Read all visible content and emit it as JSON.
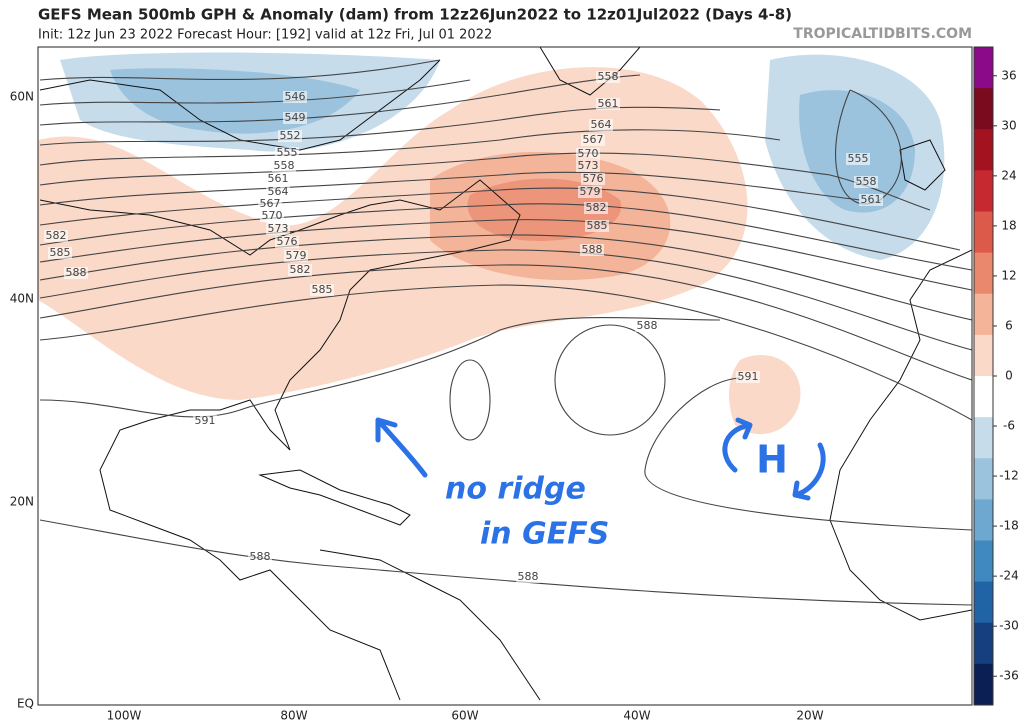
{
  "header": {
    "title": "GEFS Mean 500mb GPH & Anomaly (dam) from 12z26Jun2022 to 12z01Jul2022 (Days 4-8)",
    "subtitle": "Init: 12z Jun 23 2022   Forecast Hour: [192]   valid at 12z Fri, Jul 01 2022",
    "watermark": "TROPICALTIDBITS.COM"
  },
  "map": {
    "lat_labels": [
      "60N",
      "40N",
      "20N",
      "EQ"
    ],
    "lon_labels": [
      "100W",
      "80W",
      "60W",
      "40W",
      "20W"
    ],
    "contour_labels": [
      "546",
      "549",
      "552",
      "555",
      "558",
      "561",
      "564",
      "567",
      "570",
      "573",
      "576",
      "579",
      "582",
      "585",
      "582",
      "585",
      "588",
      "591",
      "558",
      "561",
      "564",
      "567",
      "570",
      "573",
      "576",
      "579",
      "582",
      "585",
      "588",
      "588",
      "591",
      "555",
      "558",
      "561",
      "588",
      "588"
    ]
  },
  "colorbar": {
    "ticks": [
      36,
      30,
      24,
      18,
      12,
      6,
      0,
      -6,
      -12,
      -18,
      -24,
      -30,
      -36
    ],
    "colors": [
      "#8a0a8a",
      "#7a0a1e",
      "#a3121f",
      "#c62a30",
      "#dc5a4a",
      "#e9886d",
      "#f4b49a",
      "#fbd9c8",
      "#ffffff",
      "#c6dceb",
      "#9cc3de",
      "#6ea7d0",
      "#3f88c0",
      "#2164a6",
      "#153f7e",
      "#0b1f55"
    ]
  },
  "annotation": {
    "lines": [
      "no ridge",
      "in GEFS"
    ],
    "symbol": "H"
  }
}
